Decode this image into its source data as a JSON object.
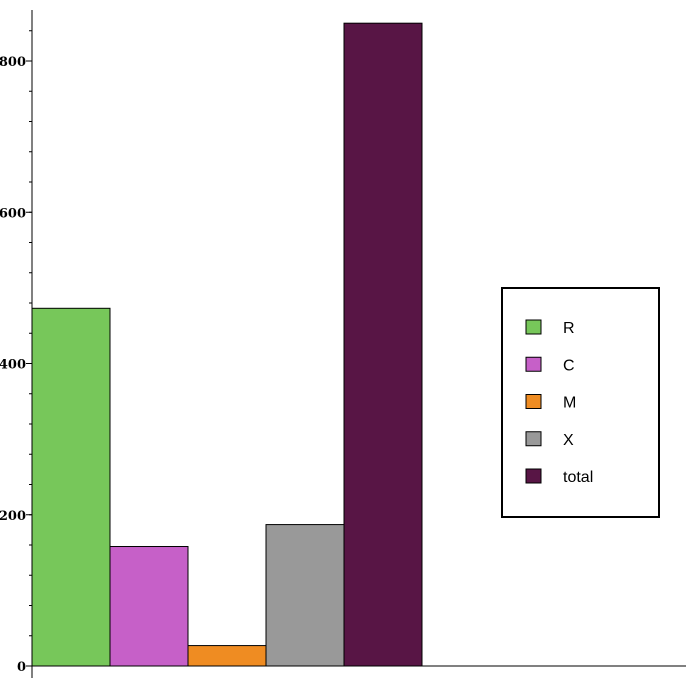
{
  "chart_data": {
    "type": "bar",
    "title": "",
    "xlabel": "",
    "ylabel": "",
    "ylim": [
      0,
      860
    ],
    "yticks": [
      0,
      200,
      400,
      600,
      800
    ],
    "ytick_labels": [
      "0",
      "200",
      "400",
      "600",
      "800"
    ],
    "grid": false,
    "legend_position": "right",
    "bars": [
      {
        "name": "R",
        "value": 473,
        "color": "#77c75a"
      },
      {
        "name": "C",
        "value": 158,
        "color": "#c660c8"
      },
      {
        "name": "M",
        "value": 27,
        "color": "#ef8c22"
      },
      {
        "name": "X",
        "value": 187,
        "color": "#999999"
      },
      {
        "name": "total",
        "value": 850,
        "color": "#581545"
      }
    ]
  }
}
